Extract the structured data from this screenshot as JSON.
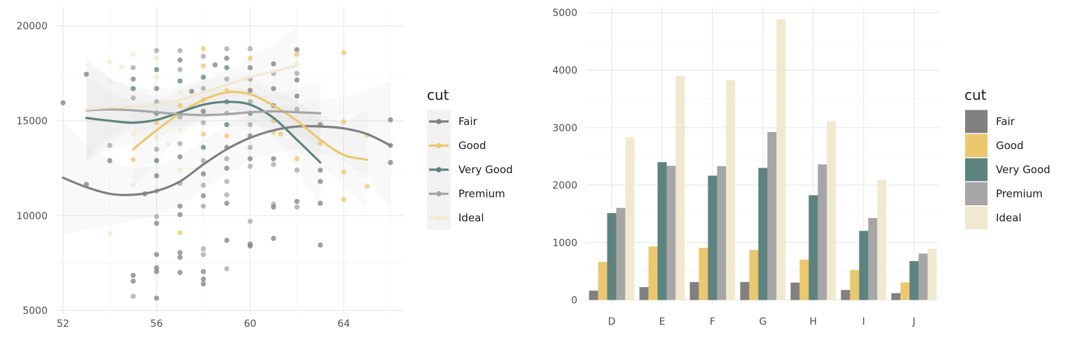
{
  "palette": {
    "Fair": "#808080",
    "Good": "#EBC86E",
    "Very Good": "#5E837F",
    "Premium": "#A6A6A6",
    "Ideal": "#F1E9CF"
  },
  "chart_data": [
    {
      "type": "scatter",
      "title": "",
      "xlabel": "",
      "ylabel": "",
      "xlim": [
        51.7,
        66.6
      ],
      "ylim": [
        4800,
        21000
      ],
      "x_ticks": [
        52,
        56,
        60,
        64
      ],
      "y_ticks": [
        5000,
        10000,
        15000,
        20000
      ],
      "grid": true,
      "legend": {
        "title": "cut",
        "position": "right",
        "entries": [
          "Fair",
          "Good",
          "Very Good",
          "Premium",
          "Ideal"
        ]
      },
      "points": [
        {
          "x": 52,
          "y": 15950,
          "s": "Fair"
        },
        {
          "x": 53,
          "y": 17450,
          "s": "Fair"
        },
        {
          "x": 53,
          "y": 11650,
          "s": "Fair"
        },
        {
          "x": 54,
          "y": 12900,
          "s": "Fair"
        },
        {
          "x": 54,
          "y": 13700,
          "s": "Premium"
        },
        {
          "x": 54,
          "y": 9050,
          "s": "Ideal"
        },
        {
          "x": 54,
          "y": 17100,
          "s": "Ideal"
        },
        {
          "x": 54,
          "y": 18100,
          "s": "Ideal"
        },
        {
          "x": 54.5,
          "y": 17850,
          "s": "Ideal"
        },
        {
          "x": 54.5,
          "y": 15600,
          "s": "Ideal"
        },
        {
          "x": 55,
          "y": 18500,
          "s": "Ideal"
        },
        {
          "x": 55,
          "y": 17800,
          "s": "Premium"
        },
        {
          "x": 55,
          "y": 17200,
          "s": "Fair"
        },
        {
          "x": 55,
          "y": 16700,
          "s": "Very Good"
        },
        {
          "x": 55,
          "y": 16200,
          "s": "Premium"
        },
        {
          "x": 55,
          "y": 15200,
          "s": "Ideal"
        },
        {
          "x": 55,
          "y": 14300,
          "s": "Ideal"
        },
        {
          "x": 55,
          "y": 12950,
          "s": "Good"
        },
        {
          "x": 55,
          "y": 11600,
          "s": "Ideal"
        },
        {
          "x": 55,
          "y": 6850,
          "s": "Fair"
        },
        {
          "x": 55,
          "y": 6550,
          "s": "Fair"
        },
        {
          "x": 55,
          "y": 5750,
          "s": "Premium"
        },
        {
          "x": 55.5,
          "y": 11150,
          "s": "Fair"
        },
        {
          "x": 56,
          "y": 18700,
          "s": "Premium"
        },
        {
          "x": 56,
          "y": 18300,
          "s": "Ideal"
        },
        {
          "x": 56,
          "y": 17700,
          "s": "Very Good"
        },
        {
          "x": 56,
          "y": 17300,
          "s": "Ideal"
        },
        {
          "x": 56,
          "y": 16700,
          "s": "Fair"
        },
        {
          "x": 56,
          "y": 16000,
          "s": "Premium"
        },
        {
          "x": 56,
          "y": 15400,
          "s": "Very Good"
        },
        {
          "x": 56,
          "y": 14900,
          "s": "Good"
        },
        {
          "x": 56,
          "y": 14100,
          "s": "Ideal"
        },
        {
          "x": 56,
          "y": 13500,
          "s": "Premium"
        },
        {
          "x": 56,
          "y": 12900,
          "s": "Very Good"
        },
        {
          "x": 56,
          "y": 12100,
          "s": "Fair"
        },
        {
          "x": 56,
          "y": 11300,
          "s": "Premium"
        },
        {
          "x": 56,
          "y": 9950,
          "s": "Premium"
        },
        {
          "x": 56,
          "y": 9600,
          "s": "Fair"
        },
        {
          "x": 56,
          "y": 7950,
          "s": "Fair"
        },
        {
          "x": 56,
          "y": 7250,
          "s": "Fair"
        },
        {
          "x": 56,
          "y": 7050,
          "s": "Fair"
        },
        {
          "x": 56,
          "y": 5650,
          "s": "Fair"
        },
        {
          "x": 56.5,
          "y": 13750,
          "s": "Ideal"
        },
        {
          "x": 57,
          "y": 18700,
          "s": "Premium"
        },
        {
          "x": 57,
          "y": 18200,
          "s": "Fair"
        },
        {
          "x": 57,
          "y": 17700,
          "s": "Premium"
        },
        {
          "x": 57,
          "y": 17100,
          "s": "Very Good"
        },
        {
          "x": 57,
          "y": 16500,
          "s": "Ideal"
        },
        {
          "x": 57,
          "y": 15800,
          "s": "Good"
        },
        {
          "x": 57,
          "y": 15200,
          "s": "Premium"
        },
        {
          "x": 57,
          "y": 14500,
          "s": "Ideal"
        },
        {
          "x": 57,
          "y": 13800,
          "s": "Premium"
        },
        {
          "x": 57,
          "y": 13100,
          "s": "Fair"
        },
        {
          "x": 57,
          "y": 12400,
          "s": "Ideal"
        },
        {
          "x": 57,
          "y": 11700,
          "s": "Premium"
        },
        {
          "x": 57,
          "y": 10500,
          "s": "Fair"
        },
        {
          "x": 57,
          "y": 10050,
          "s": "Fair"
        },
        {
          "x": 57,
          "y": 9100,
          "s": "Good"
        },
        {
          "x": 57,
          "y": 8050,
          "s": "Fair"
        },
        {
          "x": 57,
          "y": 7800,
          "s": "Fair"
        },
        {
          "x": 57,
          "y": 7000,
          "s": "Fair"
        },
        {
          "x": 57.5,
          "y": 16550,
          "s": "Fair"
        },
        {
          "x": 58,
          "y": 18800,
          "s": "Good"
        },
        {
          "x": 58,
          "y": 18400,
          "s": "Premium"
        },
        {
          "x": 58,
          "y": 17900,
          "s": "Good"
        },
        {
          "x": 58,
          "y": 17300,
          "s": "Very Good"
        },
        {
          "x": 58,
          "y": 16700,
          "s": "Premium"
        },
        {
          "x": 58,
          "y": 16100,
          "s": "Good"
        },
        {
          "x": 58,
          "y": 15500,
          "s": "Fair"
        },
        {
          "x": 58,
          "y": 14900,
          "s": "Premium"
        },
        {
          "x": 58,
          "y": 14300,
          "s": "Good"
        },
        {
          "x": 58,
          "y": 13600,
          "s": "Very Good"
        },
        {
          "x": 58,
          "y": 12900,
          "s": "Premium"
        },
        {
          "x": 58,
          "y": 12200,
          "s": "Fair"
        },
        {
          "x": 58,
          "y": 11600,
          "s": "Premium"
        },
        {
          "x": 58,
          "y": 11050,
          "s": "Fair"
        },
        {
          "x": 58,
          "y": 10500,
          "s": "Premium"
        },
        {
          "x": 58,
          "y": 8250,
          "s": "Premium"
        },
        {
          "x": 58,
          "y": 7950,
          "s": "Premium"
        },
        {
          "x": 58,
          "y": 7050,
          "s": "Fair"
        },
        {
          "x": 58,
          "y": 6650,
          "s": "Fair"
        },
        {
          "x": 58,
          "y": 6400,
          "s": "Fair"
        },
        {
          "x": 58.5,
          "y": 17950,
          "s": "Fair"
        },
        {
          "x": 59,
          "y": 18800,
          "s": "Premium"
        },
        {
          "x": 59,
          "y": 18300,
          "s": "Fair"
        },
        {
          "x": 59,
          "y": 17800,
          "s": "Very Good"
        },
        {
          "x": 59,
          "y": 17200,
          "s": "Premium"
        },
        {
          "x": 59,
          "y": 16600,
          "s": "Good"
        },
        {
          "x": 59,
          "y": 16000,
          "s": "Fair"
        },
        {
          "x": 59,
          "y": 15400,
          "s": "Premium"
        },
        {
          "x": 59,
          "y": 14800,
          "s": "Very Good"
        },
        {
          "x": 59,
          "y": 14200,
          "s": "Good"
        },
        {
          "x": 59,
          "y": 13600,
          "s": "Fair"
        },
        {
          "x": 59,
          "y": 13000,
          "s": "Premium"
        },
        {
          "x": 59,
          "y": 12500,
          "s": "Fair"
        },
        {
          "x": 59,
          "y": 11800,
          "s": "Premium"
        },
        {
          "x": 59,
          "y": 11100,
          "s": "Premium"
        },
        {
          "x": 59,
          "y": 10650,
          "s": "Fair"
        },
        {
          "x": 59,
          "y": 8700,
          "s": "Fair"
        },
        {
          "x": 59,
          "y": 7200,
          "s": "Premium"
        },
        {
          "x": 60,
          "y": 18800,
          "s": "Premium"
        },
        {
          "x": 60,
          "y": 18300,
          "s": "Good"
        },
        {
          "x": 60,
          "y": 17800,
          "s": "Fair"
        },
        {
          "x": 60,
          "y": 17200,
          "s": "Premium"
        },
        {
          "x": 60,
          "y": 16600,
          "s": "Fair"
        },
        {
          "x": 60,
          "y": 16000,
          "s": "Premium"
        },
        {
          "x": 60,
          "y": 15400,
          "s": "Very Good"
        },
        {
          "x": 60,
          "y": 14800,
          "s": "Premium"
        },
        {
          "x": 60,
          "y": 14200,
          "s": "Fair"
        },
        {
          "x": 60,
          "y": 13600,
          "s": "Premium"
        },
        {
          "x": 60,
          "y": 13000,
          "s": "Fair"
        },
        {
          "x": 60,
          "y": 12600,
          "s": "Premium"
        },
        {
          "x": 60,
          "y": 9700,
          "s": "Premium"
        },
        {
          "x": 60,
          "y": 8500,
          "s": "Fair"
        },
        {
          "x": 60,
          "y": 8400,
          "s": "Fair"
        },
        {
          "x": 61,
          "y": 18000,
          "s": "Fair"
        },
        {
          "x": 61,
          "y": 17500,
          "s": "Premium"
        },
        {
          "x": 61,
          "y": 16700,
          "s": "Fair"
        },
        {
          "x": 61,
          "y": 15800,
          "s": "Fair"
        },
        {
          "x": 61,
          "y": 15000,
          "s": "Good"
        },
        {
          "x": 61,
          "y": 14400,
          "s": "Good"
        },
        {
          "x": 61,
          "y": 13000,
          "s": "Fair"
        },
        {
          "x": 61,
          "y": 12700,
          "s": "Premium"
        },
        {
          "x": 61,
          "y": 10600,
          "s": "Premium"
        },
        {
          "x": 61,
          "y": 10450,
          "s": "Fair"
        },
        {
          "x": 61,
          "y": 8800,
          "s": "Fair"
        },
        {
          "x": 61.3,
          "y": 14300,
          "s": "Good"
        },
        {
          "x": 62,
          "y": 18750,
          "s": "Fair"
        },
        {
          "x": 62,
          "y": 18500,
          "s": "Good"
        },
        {
          "x": 62,
          "y": 18000,
          "s": "Ideal"
        },
        {
          "x": 62,
          "y": 17500,
          "s": "Premium"
        },
        {
          "x": 62,
          "y": 17150,
          "s": "Fair"
        },
        {
          "x": 62,
          "y": 16300,
          "s": "Fair"
        },
        {
          "x": 62,
          "y": 15600,
          "s": "Premium"
        },
        {
          "x": 62,
          "y": 13000,
          "s": "Good"
        },
        {
          "x": 62,
          "y": 12400,
          "s": "Premium"
        },
        {
          "x": 62,
          "y": 10750,
          "s": "Fair"
        },
        {
          "x": 62,
          "y": 10450,
          "s": "Premium"
        },
        {
          "x": 63,
          "y": 14800,
          "s": "Fair"
        },
        {
          "x": 63,
          "y": 13800,
          "s": "Good"
        },
        {
          "x": 63,
          "y": 12400,
          "s": "Fair"
        },
        {
          "x": 63,
          "y": 11800,
          "s": "Fair"
        },
        {
          "x": 63,
          "y": 10650,
          "s": "Fair"
        },
        {
          "x": 63,
          "y": 8450,
          "s": "Fair"
        },
        {
          "x": 64,
          "y": 18600,
          "s": "Good"
        },
        {
          "x": 64,
          "y": 14950,
          "s": "Good"
        },
        {
          "x": 64,
          "y": 12300,
          "s": "Good"
        },
        {
          "x": 64,
          "y": 10850,
          "s": "Good"
        },
        {
          "x": 65,
          "y": 14250,
          "s": "Good"
        },
        {
          "x": 65,
          "y": 11550,
          "s": "Good"
        },
        {
          "x": 66,
          "y": 15050,
          "s": "Fair"
        },
        {
          "x": 66,
          "y": 13700,
          "s": "Fair"
        },
        {
          "x": 66,
          "y": 12800,
          "s": "Fair"
        }
      ],
      "smooth": [
        {
          "name": "Fair",
          "x": [
            52,
            53,
            54,
            55,
            56,
            57,
            58,
            59,
            60,
            61,
            62,
            63,
            64,
            65,
            66
          ],
          "y": [
            12000,
            11500,
            11150,
            11100,
            11300,
            11800,
            12700,
            13500,
            14100,
            14500,
            14700,
            14700,
            14600,
            14300,
            13700
          ],
          "band": [
            3000,
            2200,
            1700,
            1400,
            1300,
            1300,
            1300,
            1300,
            1200,
            1200,
            1200,
            1400,
            1700,
            2300,
            3400
          ]
        },
        {
          "name": "Good",
          "x": [
            55,
            56,
            57,
            58,
            59,
            60,
            61,
            62,
            63,
            64,
            65
          ],
          "y": [
            13500,
            14500,
            15400,
            16100,
            16500,
            16400,
            15800,
            15000,
            14000,
            13200,
            12950
          ],
          "band": [
            2000,
            1500,
            1200,
            1000,
            900,
            900,
            900,
            1000,
            1300,
            1700,
            2600
          ]
        },
        {
          "name": "Very Good",
          "x": [
            53,
            54,
            55,
            56,
            57,
            58,
            59,
            60,
            61,
            62,
            63
          ],
          "y": [
            15150,
            15000,
            14900,
            15050,
            15450,
            15850,
            16000,
            15850,
            15150,
            14000,
            12800
          ],
          "band": [
            2200,
            1500,
            1100,
            900,
            800,
            700,
            700,
            800,
            1000,
            1500,
            2400
          ]
        },
        {
          "name": "Premium",
          "x": [
            53,
            54,
            55,
            56,
            57,
            58,
            59,
            60,
            61,
            62,
            63
          ],
          "y": [
            15550,
            15600,
            15550,
            15450,
            15350,
            15300,
            15350,
            15450,
            15500,
            15450,
            15400
          ],
          "band": [
            2800,
            1700,
            1100,
            800,
            600,
            600,
            600,
            700,
            900,
            1200,
            1800
          ]
        },
        {
          "name": "Ideal",
          "x": [
            53,
            54,
            55,
            56,
            57,
            58,
            59,
            60,
            61,
            62
          ],
          "y": [
            15600,
            15700,
            15750,
            15850,
            16100,
            16500,
            16900,
            17300,
            17600,
            17900
          ],
          "band": [
            2500,
            1500,
            1000,
            800,
            700,
            700,
            800,
            1000,
            1400,
            2100
          ]
        }
      ]
    },
    {
      "type": "bar",
      "title": "",
      "xlabel": "",
      "ylabel": "",
      "ylim": [
        -90,
        5100
      ],
      "y_ticks": [
        0,
        1000,
        2000,
        3000,
        4000,
        5000
      ],
      "grid": true,
      "legend": {
        "title": "cut",
        "position": "right",
        "entries": [
          "Fair",
          "Good",
          "Very Good",
          "Premium",
          "Ideal"
        ]
      },
      "categories": [
        "D",
        "E",
        "F",
        "G",
        "H",
        "I",
        "J"
      ],
      "series": [
        {
          "name": "Fair",
          "values": [
            163,
            224,
            312,
            314,
            303,
            175,
            119
          ]
        },
        {
          "name": "Good",
          "values": [
            662,
            933,
            909,
            871,
            702,
            522,
            307
          ]
        },
        {
          "name": "Very Good",
          "values": [
            1513,
            2400,
            2164,
            2299,
            1824,
            1204,
            678
          ]
        },
        {
          "name": "Premium",
          "values": [
            1603,
            2337,
            2331,
            2924,
            2360,
            1428,
            808
          ]
        },
        {
          "name": "Ideal",
          "values": [
            2834,
            3903,
            3826,
            4884,
            3115,
            2093,
            896
          ]
        }
      ]
    }
  ]
}
